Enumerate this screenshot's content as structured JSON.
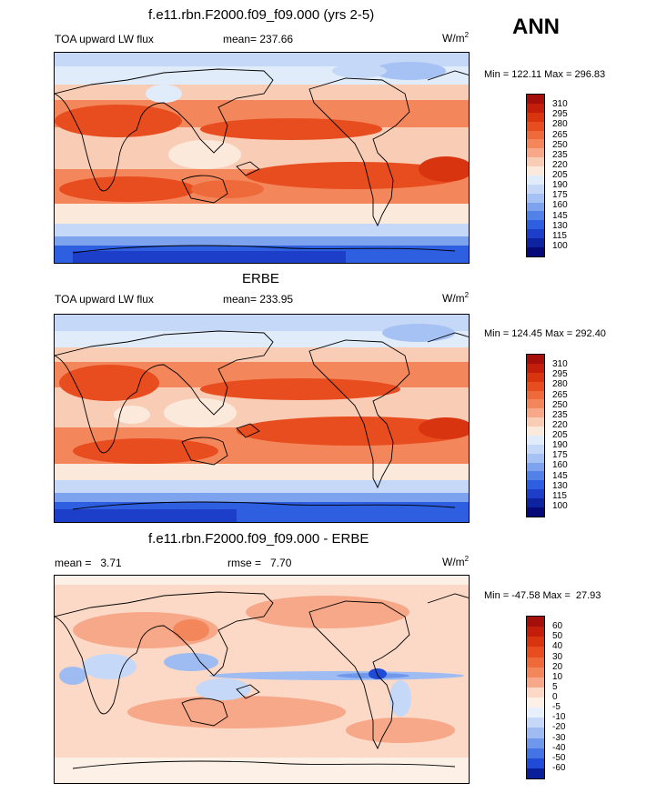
{
  "season": "ANN",
  "panels": [
    {
      "title": "f.e11.rbn.F2000.f09_f09.000 (yrs 2-5)",
      "left_label": "TOA upward LW flux",
      "center_label": "mean= 237.66",
      "units": "W/m",
      "units_exp": "2",
      "minmax": "Min = 122.11 Max = 296.83",
      "colorbar": {
        "labels": [
          "310",
          "295",
          "280",
          "265",
          "250",
          "235",
          "220",
          "205",
          "190",
          "175",
          "160",
          "145",
          "130",
          "115",
          "100"
        ],
        "colors": [
          "#a50f0b",
          "#c21e0b",
          "#d93410",
          "#e84d1f",
          "#ef6a3a",
          "#f3875b",
          "#f6a888",
          "#f9cdb5",
          "#fbe9dc",
          "#e1ecfb",
          "#c6d8f7",
          "#a6c1f3",
          "#7ea3ee",
          "#5282e8",
          "#2e5fe0",
          "#1c3ec8",
          "#0d23a0",
          "#050a78"
        ]
      }
    },
    {
      "title": "ERBE",
      "left_label": "TOA upward LW flux",
      "center_label": "mean= 233.95",
      "units": "W/m",
      "units_exp": "2",
      "minmax": "Min = 124.45 Max = 292.40",
      "colorbar": {
        "labels": [
          "310",
          "295",
          "280",
          "265",
          "250",
          "235",
          "220",
          "205",
          "190",
          "175",
          "160",
          "145",
          "130",
          "115",
          "100"
        ],
        "colors": [
          "#a50f0b",
          "#c21e0b",
          "#d93410",
          "#e84d1f",
          "#ef6a3a",
          "#f3875b",
          "#f6a888",
          "#f9cdb5",
          "#fbe9dc",
          "#e1ecfb",
          "#c6d8f7",
          "#a6c1f3",
          "#7ea3ee",
          "#5282e8",
          "#2e5fe0",
          "#1c3ec8",
          "#0d23a0",
          "#050a78"
        ]
      }
    },
    {
      "title": "f.e11.rbn.F2000.f09_f09.000 - ERBE",
      "left_label": "mean =   3.71",
      "center_label": "rmse =   7.70",
      "units": "W/m",
      "units_exp": "2",
      "minmax": "Min = -47.58 Max =  27.93",
      "colorbar": {
        "labels": [
          "60",
          "50",
          "40",
          "30",
          "20",
          "10",
          "5",
          "0",
          "-5",
          "-10",
          "-20",
          "-30",
          "-40",
          "-50",
          "-60"
        ],
        "colors": [
          "#a50f0b",
          "#c21e0b",
          "#d93410",
          "#e84d1f",
          "#ef6a3a",
          "#f3875b",
          "#f6a888",
          "#fbd9c6",
          "#fdf0e6",
          "#e8f0fc",
          "#c6d8f7",
          "#9ebcf2",
          "#6f97ec",
          "#4473e5",
          "#1f4bd6",
          "#0a1e9a"
        ]
      }
    }
  ]
}
